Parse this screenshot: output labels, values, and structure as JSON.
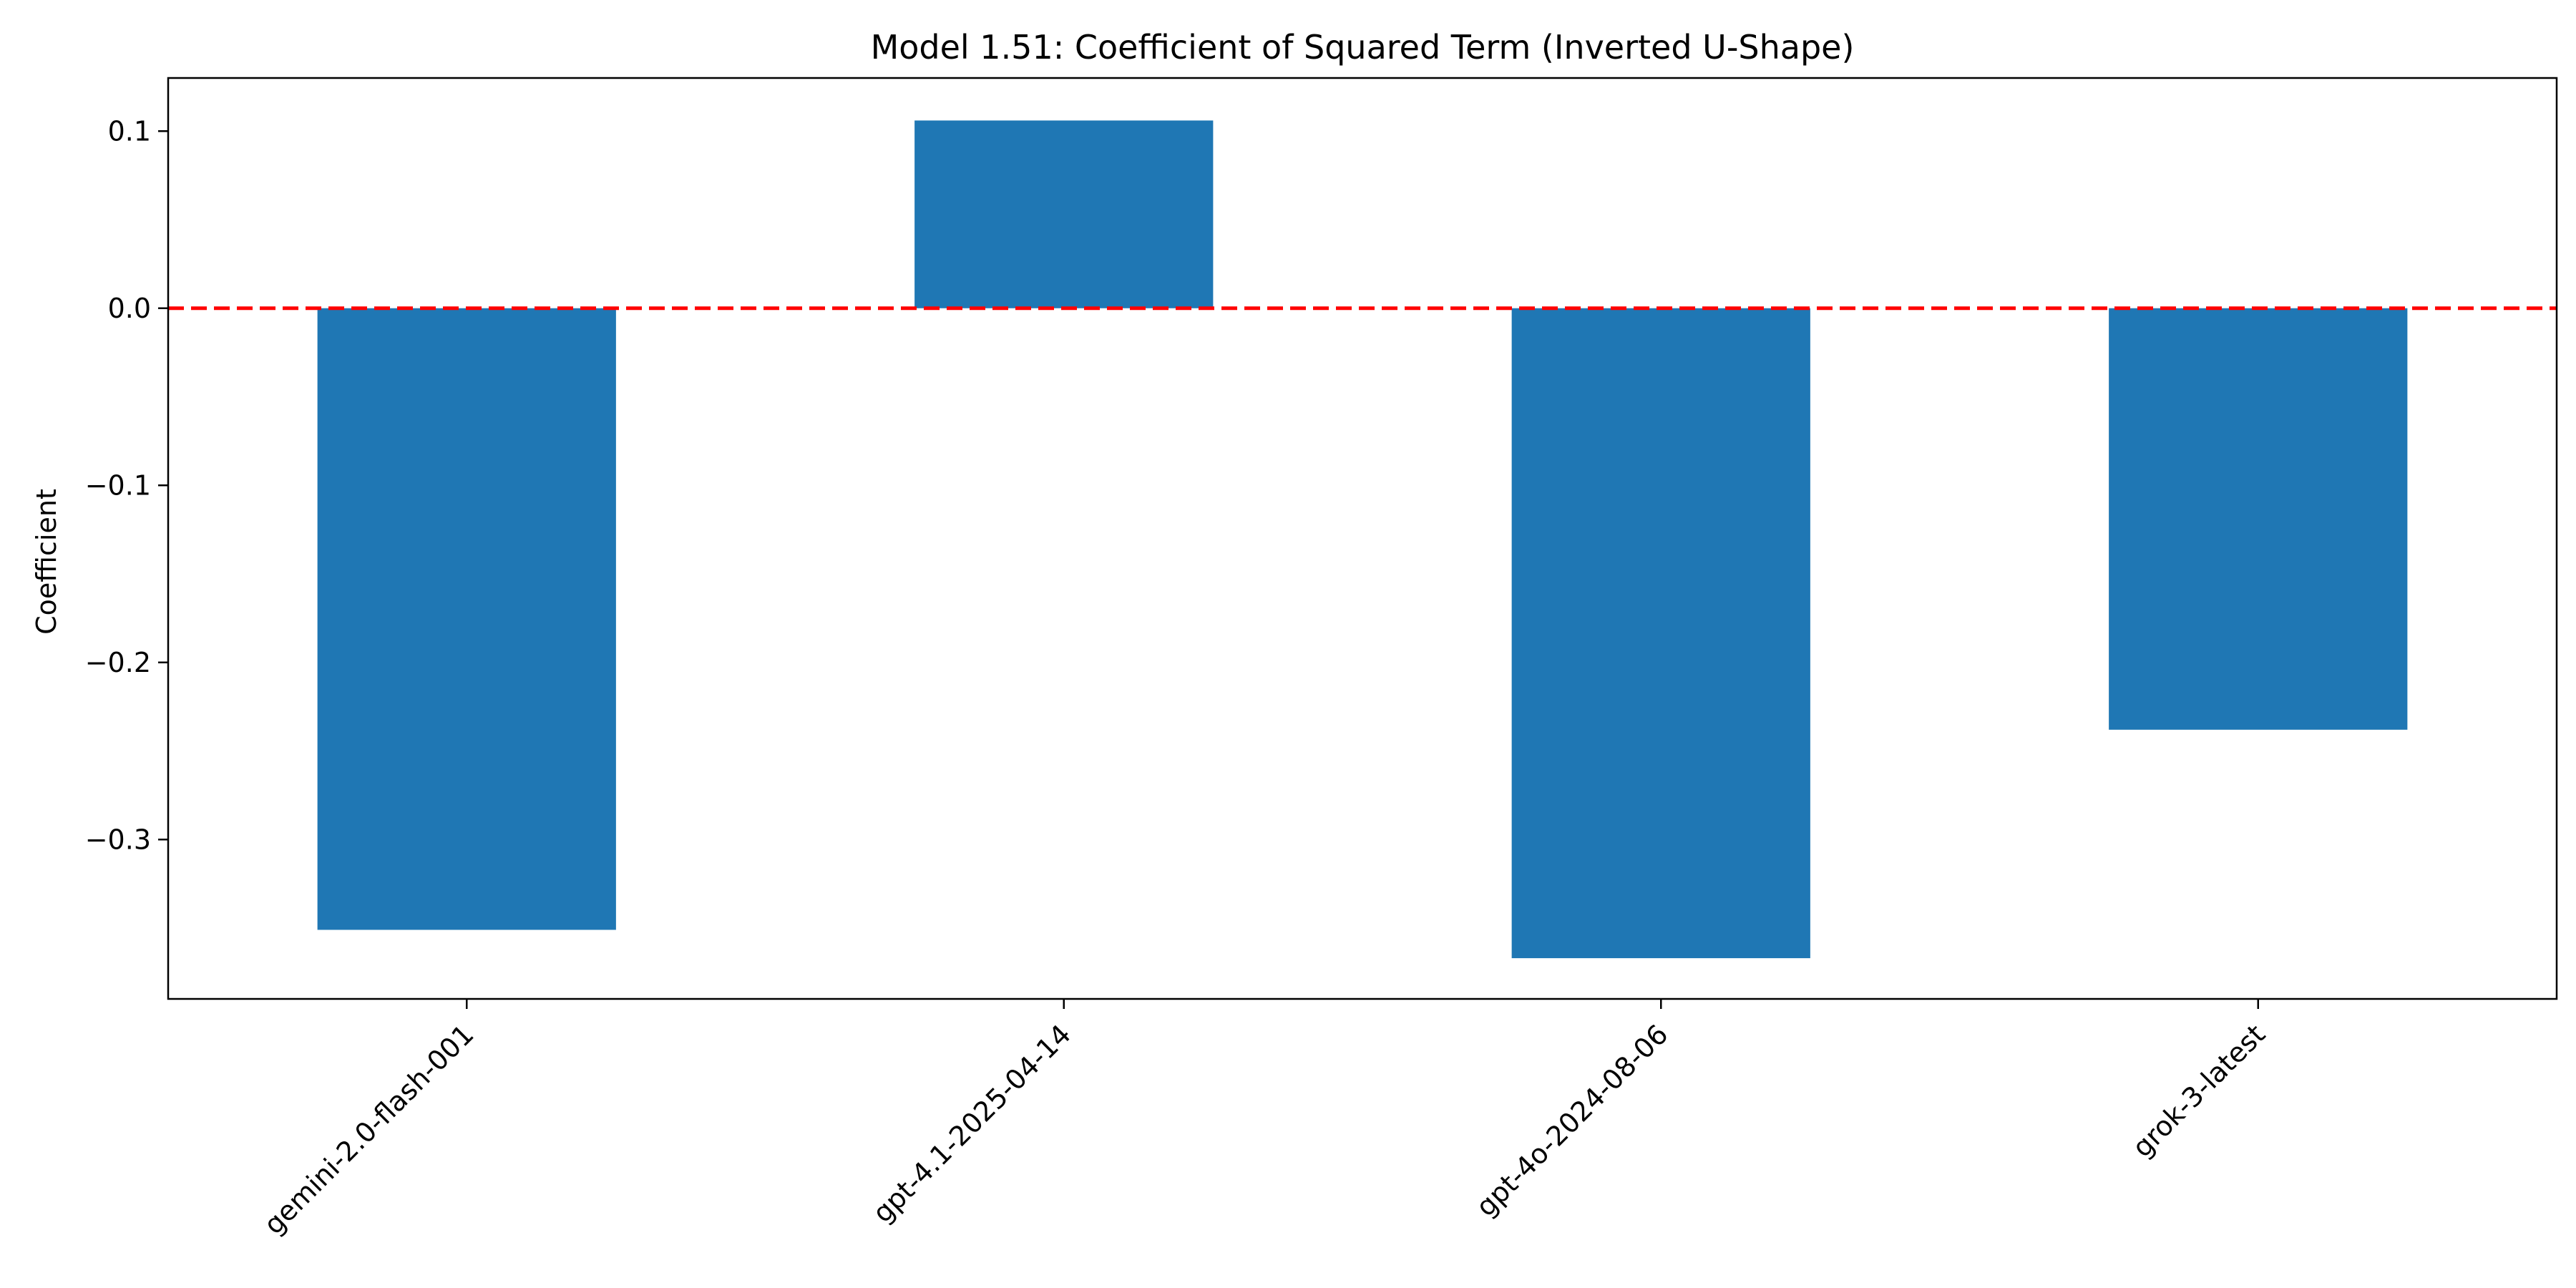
{
  "chart_data": {
    "type": "bar",
    "title": "Model 1.51: Coefficient of Squared Term (Inverted U-Shape)",
    "xlabel": "",
    "ylabel": "Coefficient",
    "categories": [
      "gemini-2.0-flash-001",
      "gpt-4.1-2025-04-14",
      "gpt-4o-2024-08-06",
      "grok-3-latest"
    ],
    "values": [
      -0.351,
      0.106,
      -0.367,
      -0.238
    ],
    "ylim": [
      -0.39,
      0.13
    ],
    "yticks": [
      0.1,
      0.0,
      -0.1,
      -0.2,
      -0.3
    ],
    "ytick_labels": [
      "0.1",
      "0.0",
      "−0.1",
      "−0.2",
      "−0.3"
    ],
    "reference_line": {
      "y": 0.0,
      "style": "dashed"
    },
    "grid": false,
    "legend": "none",
    "colors": {
      "bar": "#1f77b4",
      "reference_line": "#ff0000"
    }
  }
}
